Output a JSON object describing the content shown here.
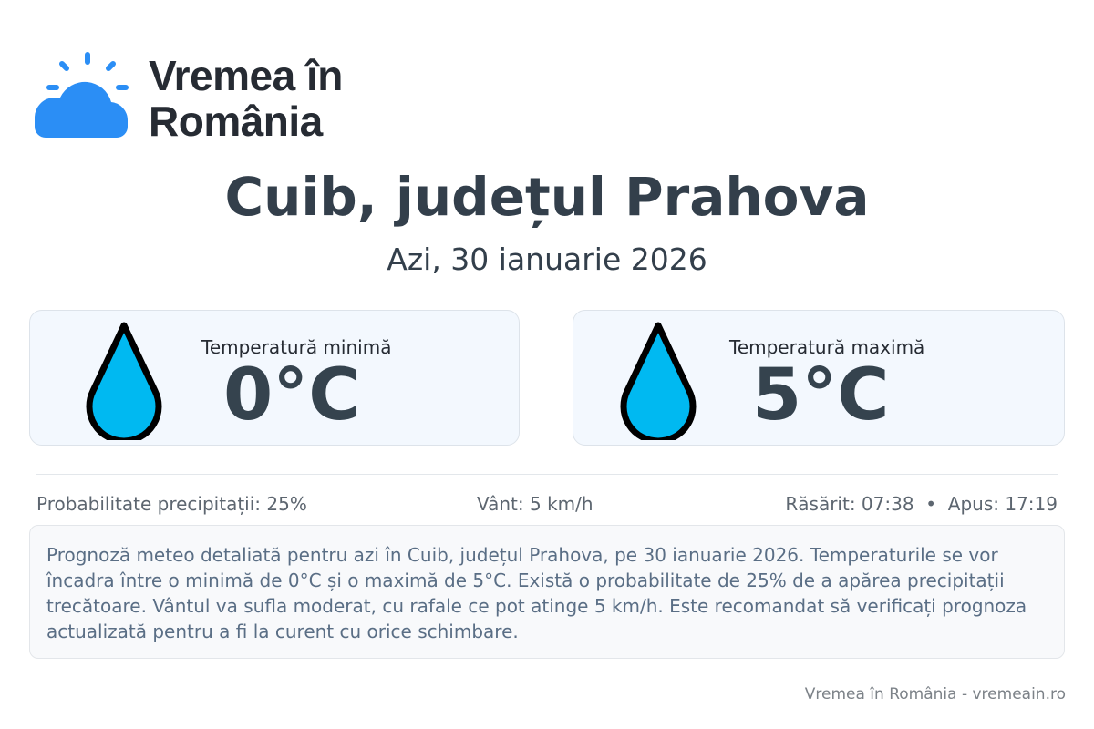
{
  "logo": {
    "line1": "Vremea în",
    "line2": "România",
    "color": "#2b8ef5"
  },
  "title": "Cuib, județul Prahova",
  "date": "Azi, 30 ianuarie 2026",
  "cards": [
    {
      "label": "Temperatură minimă",
      "value": "0°C",
      "icon": "water-drop-icon"
    },
    {
      "label": "Temperatură maximă",
      "value": "5°C",
      "icon": "water-drop-icon"
    }
  ],
  "info": {
    "precip": "Probabilitate precipitații: 25%",
    "wind": "Vânt: 5 km/h",
    "sun": "Răsărit: 07:38  •  Apus: 17:19"
  },
  "description": "Prognoză meteo detaliată pentru azi în Cuib, județul Prahova, pe 30 ianuarie 2026. Temperaturile se vor încadra între o minimă de 0°C și o maximă de 5°C. Există o probabilitate de 25% de a apărea precipitații trecătoare. Vântul va sufla moderat, cu rafale ce pot atinge 5 km/h. Este recomandat să verificați prognoza actualizată pentru a fi la curent cu orice schimbare.",
  "footer": "Vremea în România - vremeain.ro"
}
